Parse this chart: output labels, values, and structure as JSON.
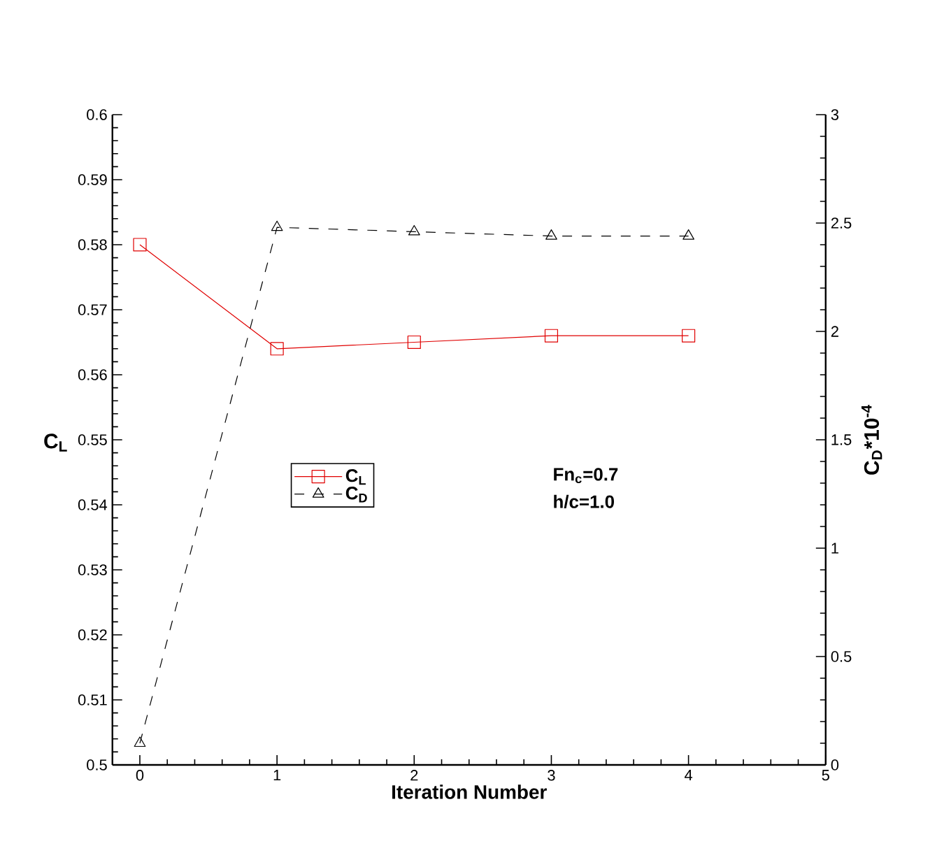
{
  "chart_data": {
    "type": "line",
    "xlabel": "Iteration Number",
    "ylabel": "C$_{L}$",
    "y2label": "C$_{D}$*10$^{-4}$",
    "x": [
      0,
      1,
      2,
      3,
      4
    ],
    "series": [
      {
        "name": "C$_{L}$",
        "color": "#e00000",
        "values": [
          0.58,
          0.564,
          0.565,
          0.566,
          0.566
        ],
        "marker": "square",
        "line_style": "solid"
      },
      {
        "name": "C$_{D}$",
        "color": "#000000",
        "values": [
          0.1,
          2.48,
          2.46,
          2.44,
          2.44
        ],
        "marker": "triangle",
        "line_style": "dashed",
        "axis": "y2"
      }
    ],
    "xlim": [
      -0.2,
      5
    ],
    "xticks": [
      0,
      1,
      2,
      3,
      4,
      5
    ],
    "ylim": [
      0.5,
      0.6
    ],
    "yticks": [
      0.5,
      0.51,
      0.52,
      0.53,
      0.54,
      0.55,
      0.56,
      0.57,
      0.58,
      0.59,
      0.6
    ],
    "y2lim": [
      0,
      3
    ],
    "y2ticks": [
      0,
      0.5,
      1,
      1.5,
      2,
      2.5,
      3
    ],
    "legend": "left",
    "annotations": [
      "Fn$_{c}$=0.7",
      "h/c=1.0"
    ]
  }
}
